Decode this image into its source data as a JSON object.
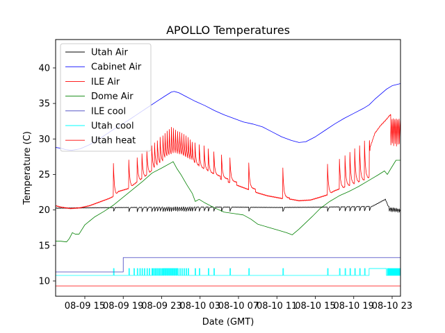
{
  "chart_data": {
    "type": "line",
    "title": "APOLLO Temperatures",
    "xlabel": "Date (GMT)",
    "ylabel": "Temperature (C)",
    "x_unit": "hours since 08-09 00:00 GMT",
    "xlim": [
      11.96,
      47.87
    ],
    "ylim": [
      7.85,
      44.0
    ],
    "grid": false,
    "legend_position": "top-left",
    "x_ticks": [
      {
        "value": 15,
        "label": "08-09 15"
      },
      {
        "value": 19,
        "label": "08-09 19"
      },
      {
        "value": 23,
        "label": "08-09 23"
      },
      {
        "value": 27,
        "label": "08-10 03"
      },
      {
        "value": 31,
        "label": "08-10 07"
      },
      {
        "value": 35,
        "label": "08-10 11"
      },
      {
        "value": 39,
        "label": "08-10 15"
      },
      {
        "value": 43,
        "label": "08-10 19"
      },
      {
        "value": 47,
        "label": "08-10 23"
      }
    ],
    "y_ticks": [
      {
        "value": 10,
        "label": "10"
      },
      {
        "value": 15,
        "label": "15"
      },
      {
        "value": 20,
        "label": "20"
      },
      {
        "value": 25,
        "label": "25"
      },
      {
        "value": 30,
        "label": "30"
      },
      {
        "value": 35,
        "label": "35"
      },
      {
        "value": 40,
        "label": "40"
      }
    ],
    "series": [
      {
        "name": "Utah Air",
        "color": "#000000",
        "kind": "sawtooth",
        "base": [
          [
            11.96,
            20.25
          ],
          [
            15,
            20.3
          ],
          [
            20,
            20.35
          ],
          [
            25,
            20.4
          ],
          [
            30,
            20.4
          ],
          [
            35,
            20.35
          ],
          [
            40,
            20.4
          ],
          [
            44.9,
            20.5
          ],
          [
            45.2,
            20.7
          ],
          [
            46.3,
            21.5
          ],
          [
            46.6,
            20.5
          ],
          [
            47.87,
            20.3
          ]
        ],
        "dips": [
          17.98,
          19.58,
          20.45,
          20.95,
          21.46,
          21.97,
          22.26,
          22.55,
          22.84,
          23.13,
          23.35,
          23.57,
          23.79,
          24.01,
          24.22,
          24.44,
          24.66,
          24.88,
          25.09,
          25.31,
          25.53,
          25.75,
          25.97,
          26.18,
          26.47,
          26.91,
          27.42,
          27.85,
          28.43,
          29.23,
          30.11,
          32.07,
          35.62,
          40.27,
          41.51,
          42.09,
          42.6,
          43.1,
          43.61,
          44.12,
          44.63,
          46.7,
          46.85,
          47.0,
          47.15,
          47.3,
          47.45,
          47.6,
          47.75
        ],
        "dip_depth": 0.6
      },
      {
        "name": "Cabinet Air",
        "color": "#0000ff",
        "kind": "line",
        "points": [
          [
            11.96,
            28.8
          ],
          [
            12.5,
            28.7
          ],
          [
            13,
            28.5
          ],
          [
            13.6,
            28.4
          ],
          [
            14.5,
            28.6
          ],
          [
            15.5,
            29.2
          ],
          [
            16.5,
            30.0
          ],
          [
            17.5,
            30.9
          ],
          [
            18.5,
            31.8
          ],
          [
            19.5,
            32.6
          ],
          [
            20.5,
            33.5
          ],
          [
            21.5,
            34.4
          ],
          [
            22.5,
            35.3
          ],
          [
            23.3,
            36.0
          ],
          [
            24.0,
            36.6
          ],
          [
            24.3,
            36.7
          ],
          [
            24.8,
            36.5
          ],
          [
            25.5,
            36.0
          ],
          [
            26.5,
            35.3
          ],
          [
            27.5,
            34.7
          ],
          [
            28.5,
            34.0
          ],
          [
            29.5,
            33.4
          ],
          [
            30.5,
            32.9
          ],
          [
            31.5,
            32.4
          ],
          [
            32.5,
            32.1
          ],
          [
            33.5,
            31.7
          ],
          [
            34.5,
            31.0
          ],
          [
            35.5,
            30.3
          ],
          [
            36.5,
            29.8
          ],
          [
            37.3,
            29.5
          ],
          [
            38,
            29.6
          ],
          [
            39,
            30.3
          ],
          [
            40,
            31.2
          ],
          [
            41,
            32.1
          ],
          [
            42,
            32.9
          ],
          [
            43,
            33.6
          ],
          [
            44,
            34.3
          ],
          [
            44.6,
            34.8
          ],
          [
            45.2,
            35.6
          ],
          [
            45.8,
            36.3
          ],
          [
            46.4,
            37.0
          ],
          [
            47,
            37.5
          ],
          [
            47.87,
            37.8
          ]
        ]
      },
      {
        "name": "ILE Air",
        "color": "#ff0000",
        "kind": "spiky",
        "base": [
          [
            11.96,
            20.6
          ],
          [
            12.5,
            20.4
          ],
          [
            13.5,
            20.2
          ],
          [
            14.5,
            20.3
          ],
          [
            15.5,
            20.6
          ],
          [
            16.5,
            21.1
          ],
          [
            17.5,
            21.6
          ],
          [
            17.97,
            21.9
          ],
          [
            18.5,
            22.6
          ],
          [
            19.5,
            23.0
          ],
          [
            20.5,
            24.0
          ],
          [
            21.5,
            25.0
          ],
          [
            22.5,
            26.2
          ],
          [
            23.5,
            27.0
          ],
          [
            24.2,
            27.4
          ],
          [
            25,
            27.0
          ],
          [
            26,
            26.4
          ],
          [
            27,
            25.6
          ],
          [
            28,
            24.9
          ],
          [
            29,
            24.4
          ],
          [
            30,
            23.9
          ],
          [
            31,
            23.4
          ],
          [
            32,
            22.9
          ],
          [
            33,
            22.4
          ],
          [
            34,
            22.0
          ],
          [
            35.6,
            21.6
          ],
          [
            36.5,
            21.5
          ],
          [
            37.3,
            21.3
          ],
          [
            38.5,
            21.4
          ],
          [
            39.5,
            21.8
          ],
          [
            40.2,
            22.1
          ],
          [
            41,
            22.7
          ],
          [
            42,
            23.2
          ],
          [
            43,
            23.7
          ],
          [
            44,
            24.2
          ],
          [
            44.6,
            24.6
          ],
          [
            44.7,
            28.8
          ],
          [
            45.2,
            30.8
          ],
          [
            45.8,
            31.9
          ],
          [
            46.3,
            32.6
          ],
          [
            46.8,
            33.4
          ]
        ],
        "spikes": [
          [
            17.98,
            26.0
          ],
          [
            19.58,
            26.4
          ],
          [
            20.45,
            26.8
          ],
          [
            20.95,
            27.3
          ],
          [
            21.46,
            27.8
          ],
          [
            21.97,
            28.5
          ],
          [
            22.26,
            28.8
          ],
          [
            22.55,
            29.2
          ],
          [
            22.84,
            29.6
          ],
          [
            23.13,
            29.9
          ],
          [
            23.35,
            30.2
          ],
          [
            23.57,
            30.5
          ],
          [
            23.79,
            30.7
          ],
          [
            24.01,
            31.0
          ],
          [
            24.22,
            30.9
          ],
          [
            24.44,
            30.7
          ],
          [
            24.66,
            30.5
          ],
          [
            24.88,
            30.4
          ],
          [
            25.09,
            30.2
          ],
          [
            25.31,
            30.0
          ],
          [
            25.53,
            29.8
          ],
          [
            25.75,
            29.6
          ],
          [
            25.97,
            29.3
          ],
          [
            26.18,
            29.0
          ],
          [
            26.47,
            28.8
          ],
          [
            26.91,
            28.6
          ],
          [
            27.42,
            28.4
          ],
          [
            27.85,
            28.0
          ],
          [
            28.43,
            27.6
          ],
          [
            29.23,
            27.2
          ],
          [
            30.11,
            26.7
          ],
          [
            32.07,
            26.0
          ],
          [
            35.62,
            25.3
          ],
          [
            40.27,
            25.8
          ],
          [
            41.51,
            26.6
          ],
          [
            42.09,
            27.1
          ],
          [
            42.6,
            27.5
          ],
          [
            43.1,
            28.0
          ],
          [
            43.61,
            28.5
          ],
          [
            44.12,
            29.1
          ],
          [
            44.63,
            29.6
          ]
        ],
        "tail_oscillation": {
          "start": 46.85,
          "end": 47.87,
          "low": 28.9,
          "high": 32.9,
          "cycles": 7
        }
      },
      {
        "name": "Dome Air",
        "color": "#008000",
        "kind": "line",
        "points": [
          [
            11.96,
            15.6
          ],
          [
            12.5,
            15.6
          ],
          [
            13.1,
            15.5
          ],
          [
            13.4,
            16.0
          ],
          [
            13.7,
            16.8
          ],
          [
            14.0,
            16.6
          ],
          [
            14.4,
            16.6
          ],
          [
            15,
            17.9
          ],
          [
            16,
            19.0
          ],
          [
            17,
            19.8
          ],
          [
            18,
            20.7
          ],
          [
            19,
            21.8
          ],
          [
            20,
            22.9
          ],
          [
            21,
            24.0
          ],
          [
            22,
            25.2
          ],
          [
            23,
            25.9
          ],
          [
            24.2,
            26.8
          ],
          [
            24.6,
            25.8
          ],
          [
            25,
            25.0
          ],
          [
            25.6,
            23.6
          ],
          [
            26.2,
            22.3
          ],
          [
            26.5,
            21.2
          ],
          [
            26.9,
            21.5
          ],
          [
            27.5,
            21.0
          ],
          [
            28.5,
            20.3
          ],
          [
            29.5,
            19.7
          ],
          [
            30.5,
            19.5
          ],
          [
            31.5,
            19.3
          ],
          [
            32.3,
            18.7
          ],
          [
            33,
            18.0
          ],
          [
            34,
            17.6
          ],
          [
            35,
            17.2
          ],
          [
            36,
            16.8
          ],
          [
            36.6,
            16.5
          ],
          [
            37.3,
            17.3
          ],
          [
            38,
            18.2
          ],
          [
            38.7,
            19.1
          ],
          [
            39.5,
            20.2
          ],
          [
            40.5,
            21.2
          ],
          [
            41.5,
            22.0
          ],
          [
            42.5,
            22.6
          ],
          [
            43.5,
            23.3
          ],
          [
            44.5,
            24.1
          ],
          [
            45.5,
            24.9
          ],
          [
            46.2,
            25.5
          ],
          [
            46.5,
            25.0
          ],
          [
            46.9,
            25.9
          ],
          [
            47.4,
            27.0
          ],
          [
            47.87,
            27.0
          ]
        ]
      },
      {
        "name": "ILE cool",
        "color": "#3f3fbf",
        "kind": "step",
        "points": [
          [
            11.96,
            11.27
          ],
          [
            19.0,
            11.27
          ],
          [
            19.0,
            13.3
          ],
          [
            47.87,
            13.3
          ]
        ]
      },
      {
        "name": "Utah cool",
        "color": "#00ffff",
        "kind": "pulses",
        "low": 10.78,
        "high": 11.75,
        "pulse_width_h": 0.07,
        "pulses": [
          17.98,
          19.58,
          20.1,
          20.45,
          20.72,
          20.95,
          21.2,
          21.46,
          21.7,
          21.97,
          22.1,
          22.26,
          22.4,
          22.55,
          22.7,
          22.84,
          23.0,
          23.13,
          23.25,
          23.35,
          23.46,
          23.57,
          23.68,
          23.79,
          23.9,
          24.01,
          24.12,
          24.22,
          24.33,
          24.44,
          24.55,
          24.66,
          24.88,
          25.09,
          25.31,
          25.53,
          25.75,
          26.47,
          26.91,
          27.85,
          28.43,
          30.11,
          32.07,
          35.62,
          40.27,
          41.51,
          42.09,
          42.6,
          43.1,
          43.61,
          44.12
        ],
        "plateau": [
          44.6,
          46.4
        ],
        "dense_tail": [
          46.5,
          47.87
        ]
      },
      {
        "name": "Utah heat",
        "color": "#ff0000",
        "kind": "line",
        "points": [
          [
            11.96,
            9.3
          ],
          [
            47.87,
            9.3
          ]
        ]
      }
    ]
  }
}
